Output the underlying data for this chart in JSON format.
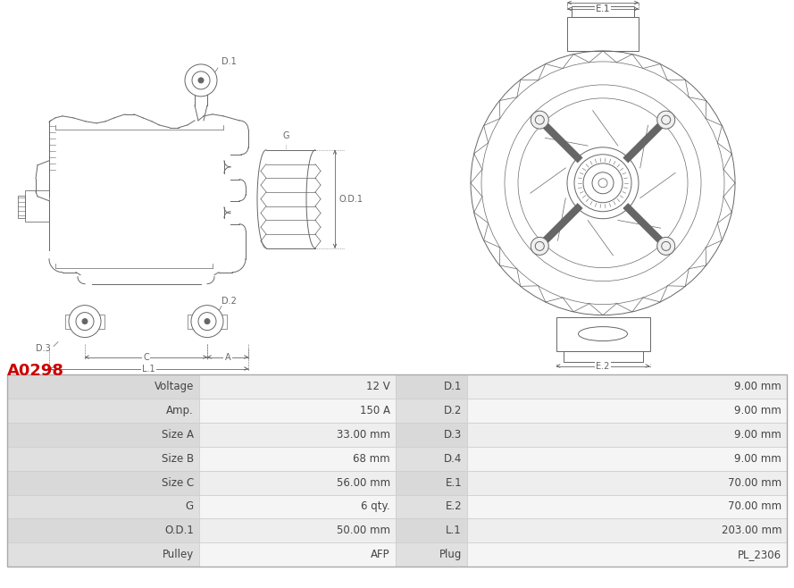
{
  "title": "A0298",
  "title_color": "#cc0000",
  "title_fontsize": 13,
  "table_rows": [
    [
      "Voltage",
      "12 V",
      "D.1",
      "9.00 mm"
    ],
    [
      "Amp.",
      "150 A",
      "D.2",
      "9.00 mm"
    ],
    [
      "Size A",
      "33.00 mm",
      "D.3",
      "9.00 mm"
    ],
    [
      "Size B",
      "68 mm",
      "D.4",
      "9.00 mm"
    ],
    [
      "Size C",
      "56.00 mm",
      "E.1",
      "70.00 mm"
    ],
    [
      "G",
      "6 qty.",
      "E.2",
      "70.00 mm"
    ],
    [
      "O.D.1",
      "50.00 mm",
      "L.1",
      "203.00 mm"
    ],
    [
      "Pulley",
      "AFP",
      "Plug",
      "PL_2306"
    ]
  ],
  "bg_color": "#ffffff",
  "lc": "#666666",
  "lw": 0.7
}
